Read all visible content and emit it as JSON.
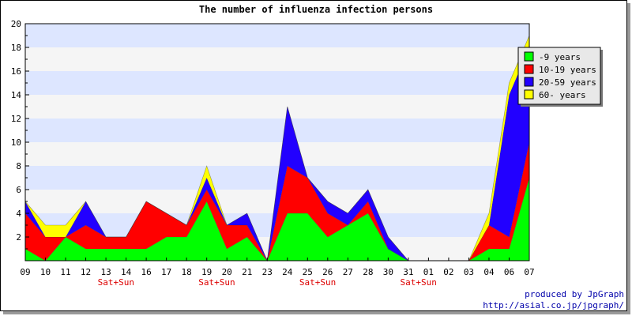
{
  "chart_data": {
    "type": "area",
    "stacked": true,
    "title": "The number of influenza infection persons",
    "x": [
      "09",
      "10",
      "11",
      "12",
      "13",
      "14",
      "16",
      "17",
      "18",
      "19",
      "20",
      "21",
      "23",
      "24",
      "25",
      "26",
      "27",
      "28",
      "30",
      "31",
      "01",
      "02",
      "03",
      "04",
      "06",
      "07"
    ],
    "weekend_label": "Sat+Sun",
    "weekend_after_index": [
      4,
      9,
      14,
      19
    ],
    "ylim": [
      0,
      20
    ],
    "yticks": [
      2,
      4,
      6,
      8,
      10,
      12,
      14,
      16,
      18,
      20
    ],
    "legend_position": "top-right",
    "grid": true,
    "series": [
      {
        "name": "-9 years",
        "color": "#00ff00",
        "values": [
          1,
          0,
          2,
          1,
          1,
          1,
          1,
          2,
          2,
          5,
          1,
          2,
          0,
          4,
          4,
          2,
          3,
          4,
          1,
          0,
          0,
          0,
          0,
          1,
          1,
          7
        ]
      },
      {
        "name": "10-19 years",
        "color": "#ff0000",
        "values": [
          3,
          2,
          0,
          2,
          1,
          1,
          4,
          2,
          1,
          1,
          2,
          1,
          0,
          4,
          3,
          2,
          0,
          1,
          0,
          0,
          0,
          0,
          0,
          2,
          1,
          3
        ]
      },
      {
        "name": "20-59 years",
        "color": "#2200ff",
        "values": [
          1,
          0,
          0,
          2,
          0,
          0,
          0,
          0,
          0,
          1,
          0,
          1,
          0,
          5,
          0,
          1,
          1,
          1,
          1,
          0,
          0,
          0,
          0,
          0,
          12,
          8
        ]
      },
      {
        "name": "60- years",
        "color": "#ffff00",
        "values": [
          0,
          1,
          1,
          0,
          0,
          0,
          0,
          0,
          0,
          1,
          0,
          0,
          0,
          0,
          0,
          0,
          0,
          0,
          0,
          0,
          0,
          0,
          0,
          1,
          1,
          1
        ]
      }
    ],
    "band_colors": [
      "#f5f5f5",
      "#dde6ff"
    ]
  },
  "credit": {
    "line1": "produced by JpGraph",
    "line2": "http://asial.co.jp/jpgraph/"
  }
}
